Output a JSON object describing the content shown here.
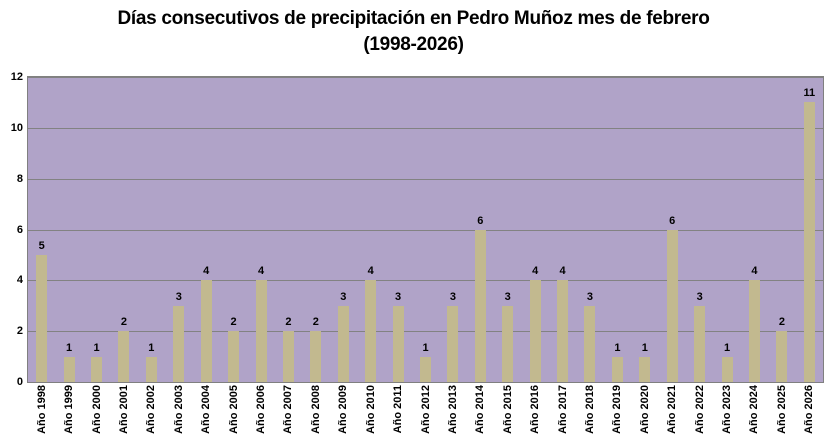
{
  "title": {
    "line1": "Días consecutivos de precipitación en Pedro Muñoz mes de febrero",
    "line2": "(1998-2026)"
  },
  "chart_data": {
    "type": "bar",
    "title": "Días consecutivos de precipitación en Pedro Muñoz mes de febrero (1998-2026)",
    "categories": [
      "Año 1998",
      "Año 1999",
      "Año 2000",
      "Año 2001",
      "Año 2002",
      "Año 2003",
      "Año 2004",
      "Año 2005",
      "Año 2006",
      "Año 2007",
      "Año 2008",
      "Año 2009",
      "Año 2010",
      "Año 2011",
      "Año 2012",
      "Año 2013",
      "Año 2014",
      "Año 2015",
      "Año 2016",
      "Año 2017",
      "Año 2018",
      "Año 2019",
      "Año 2020",
      "Año 2021",
      "Año 2022",
      "Año 2023",
      "Año 2024",
      "Año 2025",
      "Año 2026"
    ],
    "values": [
      5,
      1,
      1,
      2,
      1,
      3,
      4,
      2,
      4,
      2,
      2,
      3,
      4,
      3,
      1,
      3,
      6,
      3,
      4,
      4,
      3,
      1,
      1,
      6,
      3,
      1,
      4,
      2,
      11
    ],
    "xlabel": "",
    "ylabel": "",
    "ylim": [
      0,
      12
    ],
    "yticks": [
      0,
      2,
      4,
      6,
      8,
      10,
      12
    ],
    "grid": true,
    "legend": false,
    "data_labels_shown": true,
    "colors": {
      "bar": "#C2B98F",
      "plot_background": "#B0A3C8",
      "gridline": "#828282",
      "plot_border": "#808080",
      "text": "#000000",
      "outer_background": "#FFFFFF"
    }
  }
}
